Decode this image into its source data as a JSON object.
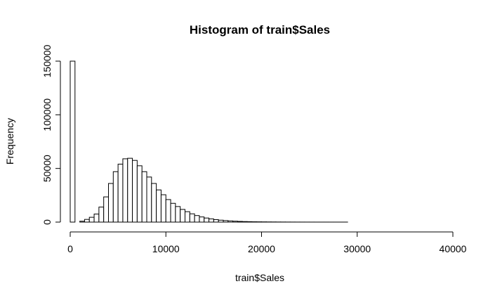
{
  "chart_data": {
    "type": "bar",
    "title": "Histogram of train$Sales",
    "xlabel": "train$Sales",
    "ylabel": "Frequency",
    "xlim": [
      0,
      40000
    ],
    "ylim": [
      0,
      150000
    ],
    "x_ticks": [
      0,
      10000,
      20000,
      30000,
      40000
    ],
    "y_ticks": [
      0,
      50000,
      100000,
      150000
    ],
    "x_tick_labels": [
      "0",
      "10000",
      "20000",
      "30000",
      "40000"
    ],
    "y_tick_labels": [
      "0",
      "50000",
      "100000",
      "150000"
    ],
    "bin_width": 500,
    "bin_start": 0,
    "values": [
      150000,
      0,
      800,
      2500,
      4500,
      7500,
      14000,
      23500,
      36000,
      47000,
      54000,
      59000,
      59500,
      57500,
      52500,
      47000,
      42000,
      36000,
      30000,
      25500,
      21000,
      17500,
      14500,
      11800,
      9700,
      7700,
      6100,
      4800,
      3800,
      3000,
      2300,
      1800,
      1400,
      1100,
      850,
      650,
      500,
      400,
      300,
      250,
      200,
      160,
      130,
      100,
      80,
      60,
      50,
      40,
      30,
      25,
      20,
      16,
      12,
      10,
      8,
      6,
      5,
      4,
      3,
      3,
      2,
      2,
      2,
      1,
      1,
      1,
      1,
      1,
      1,
      1,
      1,
      1,
      1,
      1,
      1,
      1,
      1,
      1,
      1
    ],
    "grid": false,
    "bar_fill": "#ffffff",
    "bar_stroke": "#000000"
  }
}
